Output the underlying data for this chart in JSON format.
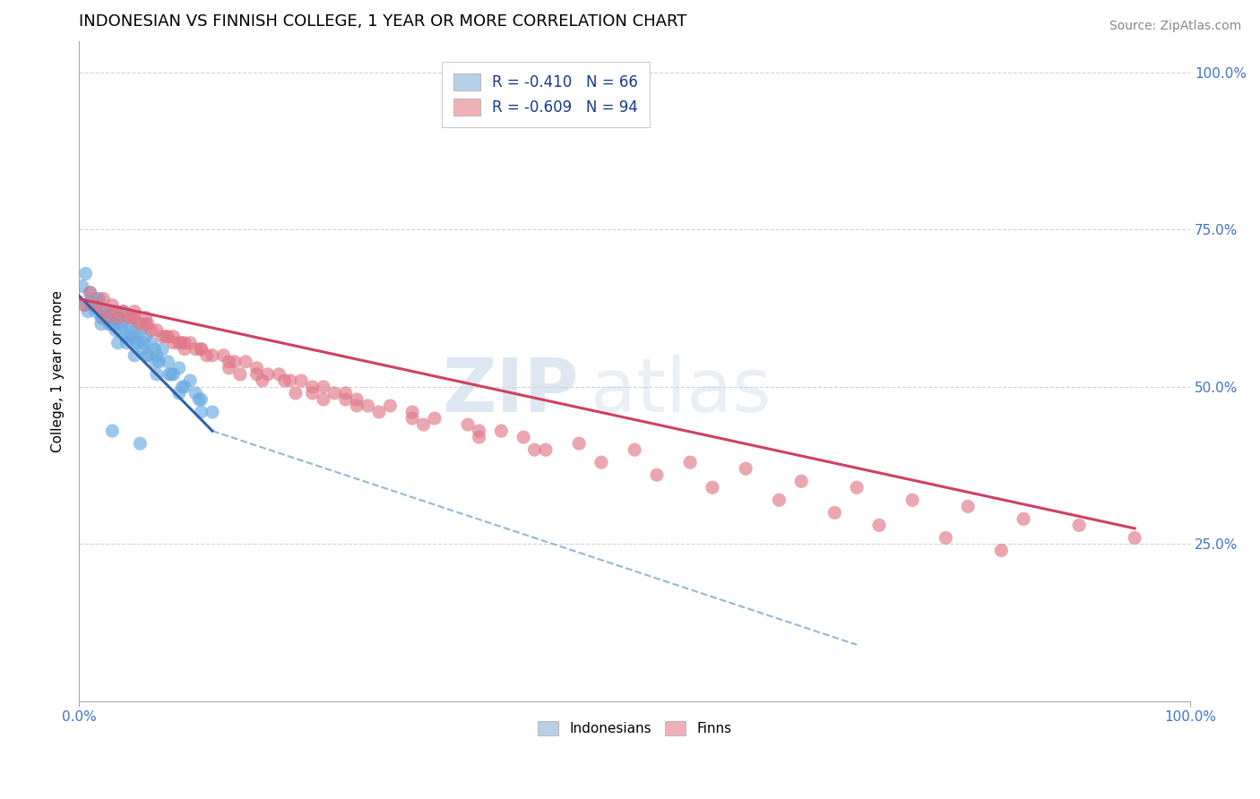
{
  "title": "INDONESIAN VS FINNISH COLLEGE, 1 YEAR OR MORE CORRELATION CHART",
  "source_text": "Source: ZipAtlas.com",
  "ylabel": "College, 1 year or more",
  "y_tick_labels_right": [
    "25.0%",
    "50.0%",
    "75.0%",
    "100.0%"
  ],
  "legend_entries": [
    {
      "label": "R = -0.410   N = 66",
      "color": "#b8d0e8"
    },
    {
      "label": "R = -0.609   N = 94",
      "color": "#f0b0b8"
    }
  ],
  "legend_bottom": [
    {
      "label": "Indonesians",
      "color": "#b8d0e8"
    },
    {
      "label": "Finns",
      "color": "#f0b0b8"
    }
  ],
  "indonesian_scatter": {
    "color": "#6aabe0",
    "alpha": 0.65,
    "x": [
      0.5,
      0.8,
      1.0,
      1.2,
      1.5,
      1.8,
      2.0,
      2.2,
      2.5,
      2.8,
      3.0,
      3.2,
      3.5,
      3.8,
      4.0,
      4.2,
      4.5,
      4.8,
      5.0,
      5.2,
      5.5,
      5.8,
      6.0,
      6.2,
      6.5,
      6.8,
      7.0,
      7.5,
      8.0,
      8.5,
      9.0,
      9.5,
      10.0,
      10.5,
      11.0,
      12.0,
      1.1,
      1.4,
      2.1,
      2.7,
      3.3,
      3.9,
      4.6,
      5.3,
      6.1,
      7.2,
      8.3,
      0.3,
      0.6,
      1.6,
      2.3,
      3.1,
      4.3,
      5.7,
      6.9,
      8.1,
      9.3,
      10.8,
      2.0,
      3.5,
      5.0,
      7.0,
      9.0,
      11.0,
      3.0,
      5.5
    ],
    "y": [
      63,
      62,
      65,
      63,
      62,
      64,
      61,
      62,
      61,
      60,
      62,
      60,
      61,
      59,
      62,
      58,
      60,
      58,
      59,
      57,
      59,
      57,
      58,
      55,
      57,
      56,
      55,
      56,
      54,
      52,
      53,
      50,
      51,
      49,
      48,
      46,
      64,
      63,
      61,
      60,
      59,
      60,
      58,
      57,
      55,
      54,
      52,
      66,
      68,
      64,
      62,
      60,
      57,
      56,
      54,
      52,
      50,
      48,
      60,
      57,
      55,
      52,
      49,
      46,
      43,
      41
    ]
  },
  "finnish_scatter": {
    "color": "#e07888",
    "alpha": 0.65,
    "x": [
      0.5,
      1.0,
      1.5,
      2.0,
      2.5,
      3.0,
      3.5,
      4.0,
      4.5,
      5.0,
      5.5,
      6.0,
      6.5,
      7.0,
      7.5,
      8.0,
      8.5,
      9.0,
      9.5,
      10.0,
      10.5,
      11.0,
      12.0,
      13.0,
      14.0,
      15.0,
      16.0,
      17.0,
      18.0,
      19.0,
      20.0,
      21.0,
      22.0,
      23.0,
      24.0,
      25.0,
      26.0,
      28.0,
      30.0,
      32.0,
      35.0,
      38.0,
      40.0,
      45.0,
      50.0,
      55.0,
      60.0,
      65.0,
      70.0,
      75.0,
      80.0,
      85.0,
      90.0,
      95.0,
      2.2,
      3.3,
      4.8,
      6.2,
      7.8,
      9.2,
      11.5,
      13.5,
      16.0,
      18.5,
      21.0,
      24.0,
      27.0,
      31.0,
      36.0,
      41.0,
      47.0,
      52.0,
      57.0,
      63.0,
      68.0,
      72.0,
      78.0,
      83.0,
      6.0,
      8.5,
      11.0,
      13.5,
      16.5,
      19.5,
      25.0,
      30.0,
      36.0,
      42.0,
      5.0,
      9.5,
      14.5,
      22.0
    ],
    "y": [
      63,
      65,
      63,
      62,
      61,
      63,
      61,
      62,
      61,
      61,
      60,
      60,
      59,
      59,
      58,
      58,
      57,
      57,
      57,
      57,
      56,
      56,
      55,
      55,
      54,
      54,
      53,
      52,
      52,
      51,
      51,
      50,
      50,
      49,
      49,
      48,
      47,
      47,
      46,
      45,
      44,
      43,
      42,
      41,
      40,
      38,
      37,
      35,
      34,
      32,
      31,
      29,
      28,
      26,
      64,
      62,
      61,
      60,
      58,
      57,
      55,
      54,
      52,
      51,
      49,
      48,
      46,
      44,
      42,
      40,
      38,
      36,
      34,
      32,
      30,
      28,
      26,
      24,
      61,
      58,
      56,
      53,
      51,
      49,
      47,
      45,
      43,
      40,
      62,
      56,
      52,
      48
    ]
  },
  "indonesian_regression": {
    "color": "#3060b0",
    "x_start": 0.0,
    "x_end": 12.0,
    "y_start": 64.5,
    "y_end": 43.0
  },
  "finnish_regression": {
    "color": "#d04060",
    "x_start": 0.0,
    "x_end": 95.0,
    "y_start": 64.0,
    "y_end": 27.5
  },
  "dashed_extension": {
    "color": "#90b8d8",
    "x_start": 12.0,
    "x_end": 70.0,
    "y_start": 43.0,
    "y_end": 9.0
  },
  "xlim": [
    0,
    100
  ],
  "ylim": [
    0,
    105
  ],
  "yticks": [
    25,
    50,
    75,
    100
  ],
  "background_color": "#ffffff",
  "grid_color": "#cccccc",
  "watermark_lines": [
    "ZIP",
    "atlas"
  ],
  "title_fontsize": 13,
  "axis_label_fontsize": 11
}
